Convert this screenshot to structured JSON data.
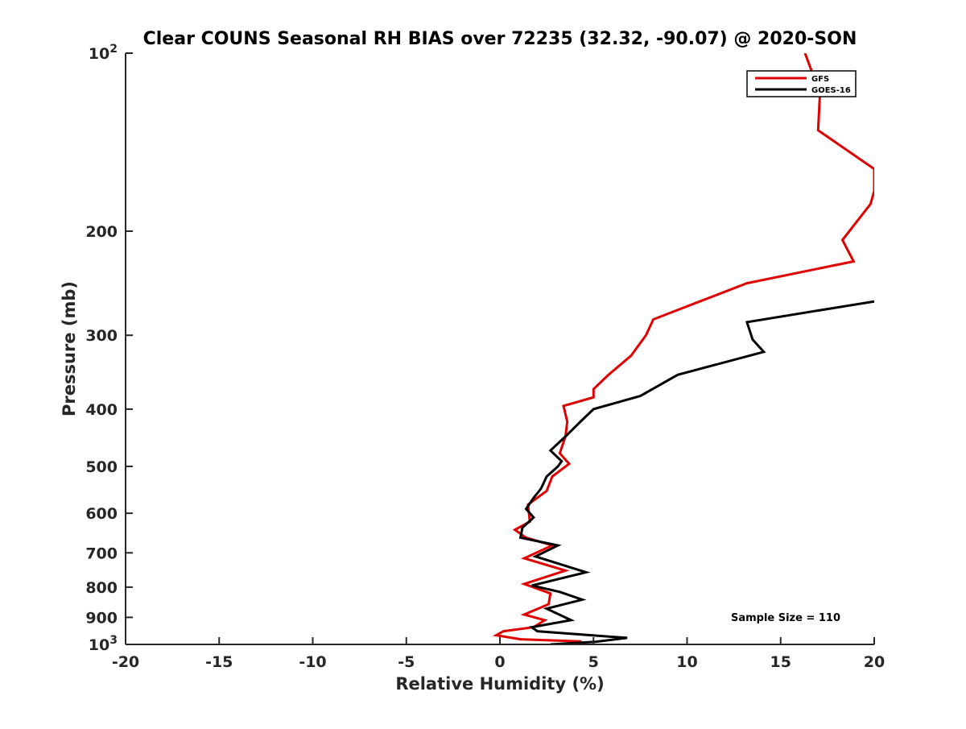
{
  "chart_data": {
    "type": "line",
    "title": "Clear COUNS Seasonal RH BIAS over 72235 (32.32, -90.07) @ 2020-SON",
    "xlabel": "Relative Humidity (%)",
    "ylabel": "Pressure (mb)",
    "xlim": [
      -20,
      20
    ],
    "ylim": [
      100,
      1000
    ],
    "y_scale": "log",
    "y_reversed": true,
    "grid": false,
    "legend_position": "top-right",
    "x_ticks": [
      "-20",
      "-15",
      "-10",
      "-5",
      "0",
      "5",
      "10",
      "15",
      "20"
    ],
    "y_ticks": [
      {
        "value": 100,
        "base": "10",
        "exp": "2"
      },
      {
        "value": 200,
        "label": "200"
      },
      {
        "value": 300,
        "label": "300"
      },
      {
        "value": 400,
        "label": "400"
      },
      {
        "value": 500,
        "label": "500"
      },
      {
        "value": 600,
        "label": "600"
      },
      {
        "value": 700,
        "label": "700"
      },
      {
        "value": 800,
        "label": "800"
      },
      {
        "value": 900,
        "label": "900"
      },
      {
        "value": 1000,
        "base": "10",
        "exp": "3"
      }
    ],
    "annotation": "Sample Size = 110",
    "series": [
      {
        "name": "GFS",
        "color": "#e00000",
        "points": [
          [
            16.3,
            100
          ],
          [
            17.1,
            117
          ],
          [
            17.0,
            135
          ],
          [
            20.0,
            157
          ],
          [
            20.0,
            171
          ],
          [
            19.8,
            180
          ],
          [
            18.3,
            207
          ],
          [
            18.9,
            225
          ],
          [
            13.2,
            245
          ],
          [
            10.4,
            265
          ],
          [
            8.2,
            282
          ],
          [
            7.8,
            300
          ],
          [
            7.0,
            325
          ],
          [
            5.8,
            350
          ],
          [
            5.0,
            370
          ],
          [
            5.0,
            382
          ],
          [
            3.4,
            395
          ],
          [
            3.6,
            420
          ],
          [
            3.5,
            445
          ],
          [
            3.2,
            475
          ],
          [
            3.7,
            495
          ],
          [
            2.8,
            520
          ],
          [
            2.5,
            550
          ],
          [
            1.5,
            580
          ],
          [
            1.6,
            620
          ],
          [
            0.8,
            640
          ],
          [
            1.4,
            660
          ],
          [
            2.8,
            680
          ],
          [
            1.3,
            715
          ],
          [
            3.5,
            750
          ],
          [
            1.3,
            790
          ],
          [
            2.7,
            820
          ],
          [
            2.6,
            855
          ],
          [
            1.3,
            890
          ],
          [
            2.4,
            910
          ],
          [
            1.8,
            935
          ],
          [
            0.2,
            950
          ],
          [
            -0.2,
            965
          ],
          [
            1.1,
            980
          ],
          [
            4.3,
            988
          ],
          [
            4.4,
            1000
          ]
        ]
      },
      {
        "name": "GOES-16",
        "color": "#000000",
        "points": [
          [
            20.0,
            263
          ],
          [
            13.2,
            285
          ],
          [
            13.5,
            305
          ],
          [
            14.1,
            320
          ],
          [
            9.5,
            350
          ],
          [
            7.5,
            380
          ],
          [
            5.0,
            400
          ],
          [
            4.3,
            420
          ],
          [
            3.5,
            445
          ],
          [
            2.7,
            470
          ],
          [
            3.3,
            490
          ],
          [
            3.1,
            500
          ],
          [
            2.5,
            520
          ],
          [
            2.2,
            545
          ],
          [
            1.8,
            565
          ],
          [
            1.4,
            590
          ],
          [
            1.8,
            610
          ],
          [
            1.2,
            635
          ],
          [
            1.1,
            660
          ],
          [
            3.1,
            680
          ],
          [
            1.9,
            710
          ],
          [
            4.6,
            755
          ],
          [
            1.7,
            795
          ],
          [
            3.2,
            815
          ],
          [
            4.4,
            840
          ],
          [
            2.5,
            870
          ],
          [
            3.8,
            910
          ],
          [
            1.7,
            935
          ],
          [
            2.0,
            950
          ],
          [
            6.8,
            975
          ],
          [
            5.1,
            990
          ],
          [
            2.7,
            1000
          ]
        ]
      }
    ]
  }
}
